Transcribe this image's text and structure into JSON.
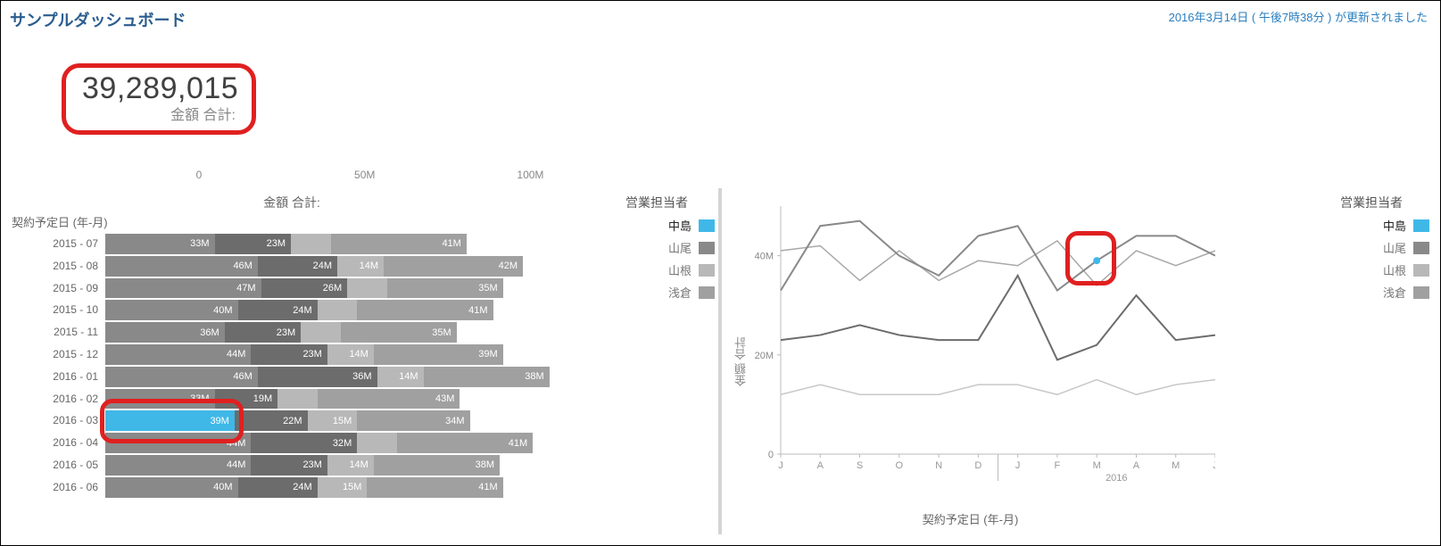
{
  "header": {
    "title": "サンプルダッシュボード",
    "timestamp": "2016年3月14日 ( 午後7時38分 ) が更新されました"
  },
  "kpi": {
    "value": "39,289,015",
    "label": "金額 合計:"
  },
  "legend": {
    "title": "営業担当者",
    "items": [
      {
        "name": "中島",
        "color": "#3fb8e8",
        "selected": true
      },
      {
        "name": "山尾",
        "color": "#898989",
        "selected": false
      },
      {
        "name": "山根",
        "color": "#b8b8b8",
        "selected": false
      },
      {
        "name": "浅倉",
        "color": "#a0a0a0",
        "selected": false
      }
    ]
  },
  "barChart": {
    "title": "金額 合計:",
    "axis_label": "契約予定日 (年-月)",
    "x_ticks": [
      {
        "pos": 0,
        "label": "0"
      },
      {
        "pos": 50,
        "label": "50M"
      },
      {
        "pos": 100,
        "label": "100M"
      }
    ],
    "x_max": 140,
    "colors": {
      "s1": "#898989",
      "s2": "#6c6c6c",
      "s3": "#b8b8b8",
      "s4": "#a0a0a0",
      "highlight": "#3fb8e8"
    },
    "rows": [
      {
        "label": "2015 - 07",
        "segs": [
          {
            "v": 33,
            "t": "33M"
          },
          {
            "v": 23,
            "t": "23M"
          },
          {
            "v": 12,
            "t": ""
          },
          {
            "v": 41,
            "t": "41M"
          }
        ]
      },
      {
        "label": "2015 - 08",
        "segs": [
          {
            "v": 46,
            "t": "46M"
          },
          {
            "v": 24,
            "t": "24M"
          },
          {
            "v": 14,
            "t": "14M"
          },
          {
            "v": 42,
            "t": "42M"
          }
        ]
      },
      {
        "label": "2015 - 09",
        "segs": [
          {
            "v": 47,
            "t": "47M"
          },
          {
            "v": 26,
            "t": "26M"
          },
          {
            "v": 12,
            "t": ""
          },
          {
            "v": 35,
            "t": "35M"
          }
        ]
      },
      {
        "label": "2015 - 10",
        "segs": [
          {
            "v": 40,
            "t": "40M"
          },
          {
            "v": 24,
            "t": "24M"
          },
          {
            "v": 12,
            "t": ""
          },
          {
            "v": 41,
            "t": "41M"
          }
        ]
      },
      {
        "label": "2015 - 11",
        "segs": [
          {
            "v": 36,
            "t": "36M"
          },
          {
            "v": 23,
            "t": "23M"
          },
          {
            "v": 12,
            "t": ""
          },
          {
            "v": 35,
            "t": "35M"
          }
        ]
      },
      {
        "label": "2015 - 12",
        "segs": [
          {
            "v": 44,
            "t": "44M"
          },
          {
            "v": 23,
            "t": "23M"
          },
          {
            "v": 14,
            "t": "14M"
          },
          {
            "v": 39,
            "t": "39M"
          }
        ]
      },
      {
        "label": "2016 - 01",
        "segs": [
          {
            "v": 46,
            "t": "46M"
          },
          {
            "v": 36,
            "t": "36M"
          },
          {
            "v": 14,
            "t": "14M"
          },
          {
            "v": 38,
            "t": "38M"
          }
        ]
      },
      {
        "label": "2016 - 02",
        "segs": [
          {
            "v": 33,
            "t": "33M"
          },
          {
            "v": 19,
            "t": "19M"
          },
          {
            "v": 12,
            "t": ""
          },
          {
            "v": 43,
            "t": "43M"
          }
        ]
      },
      {
        "label": "2016 - 03",
        "segs": [
          {
            "v": 39,
            "t": "39M",
            "hl": true
          },
          {
            "v": 22,
            "t": "22M"
          },
          {
            "v": 15,
            "t": "15M"
          },
          {
            "v": 34,
            "t": "34M"
          }
        ]
      },
      {
        "label": "2016 - 04",
        "segs": [
          {
            "v": 44,
            "t": "44M"
          },
          {
            "v": 32,
            "t": "32M"
          },
          {
            "v": 12,
            "t": ""
          },
          {
            "v": 41,
            "t": "41M"
          }
        ]
      },
      {
        "label": "2016 - 05",
        "segs": [
          {
            "v": 44,
            "t": "44M"
          },
          {
            "v": 23,
            "t": "23M"
          },
          {
            "v": 14,
            "t": "14M"
          },
          {
            "v": 38,
            "t": "38M"
          }
        ]
      },
      {
        "label": "2016 - 06",
        "segs": [
          {
            "v": 40,
            "t": "40M"
          },
          {
            "v": 24,
            "t": "24M"
          },
          {
            "v": 15,
            "t": "15M"
          },
          {
            "v": 41,
            "t": "41M"
          }
        ]
      }
    ],
    "highlight_row_index": 8
  },
  "lineChart": {
    "ylabel": "金額 合計",
    "xlabel": "契約予定日 (年-月)",
    "y_ticks": [
      {
        "v": 0,
        "label": "0"
      },
      {
        "v": 20,
        "label": "20M"
      },
      {
        "v": 40,
        "label": "40M"
      }
    ],
    "y_max": 50,
    "x_labels": [
      "J",
      "A",
      "S",
      "O",
      "N",
      "D",
      "J",
      "F",
      "M",
      "A",
      "M",
      "J"
    ],
    "x_year_label": "2016",
    "x_year_pos": 6,
    "series": [
      {
        "name": "浅倉",
        "color": "#a8a8a8",
        "width": 1.5,
        "values": [
          41,
          42,
          35,
          41,
          35,
          39,
          38,
          43,
          34,
          41,
          38,
          41
        ]
      },
      {
        "name": "山根",
        "color": "#c8c8c8",
        "width": 1.5,
        "values": [
          12,
          14,
          12,
          12,
          12,
          14,
          14,
          12,
          15,
          12,
          14,
          15
        ]
      },
      {
        "name": "山尾",
        "color": "#6c6c6c",
        "width": 2,
        "values": [
          23,
          24,
          26,
          24,
          23,
          23,
          36,
          19,
          22,
          32,
          23,
          24
        ]
      },
      {
        "name": "中島",
        "color": "#898989",
        "width": 2,
        "values": [
          33,
          46,
          47,
          40,
          36,
          44,
          46,
          33,
          39,
          44,
          44,
          40
        ]
      }
    ],
    "highlight_point": {
      "series": "中島",
      "x_index": 8,
      "color": "#3fb8e8",
      "r": 4
    },
    "redbox_x_range": [
      7.2,
      8.5
    ],
    "redbox_y_range": [
      34,
      45
    ]
  }
}
